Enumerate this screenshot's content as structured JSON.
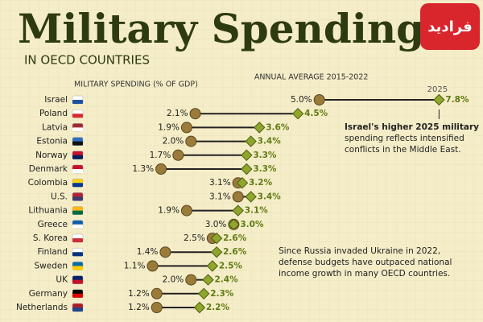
{
  "chart_data": {
    "type": "dumbbell",
    "title": "Military Spending",
    "subtitle": "IN OECD COUNTRIES",
    "axis_label": "MILITARY SPENDING (% OF GDP)",
    "watermark": "فرادید",
    "categories": [
      "Israel",
      "Poland",
      "Latvia",
      "Estonia",
      "Norway",
      "Denmark",
      "Colombia",
      "U.S.",
      "Lithuania",
      "Greece",
      "S. Korea",
      "Finland",
      "Sweden",
      "UK",
      "Germany",
      "Netherlands"
    ],
    "series": [
      {
        "name": "ANNUAL AVERAGE 2015-2022",
        "color": "#9a7b3a",
        "values": [
          5.0,
          2.1,
          1.9,
          2.0,
          1.7,
          1.3,
          3.1,
          3.1,
          1.9,
          3.0,
          2.5,
          1.4,
          1.1,
          2.0,
          1.2,
          1.2
        ],
        "value_labels": [
          "5.0%",
          "2.1%",
          "1.9%",
          "2.0%",
          "1.7%",
          "1.3%",
          "3.1%",
          "3.1%",
          "1.9%",
          "3.0%",
          "2.5%",
          "1.4%",
          "1.1%",
          "2.0%",
          "1.2%",
          "1.2%"
        ]
      },
      {
        "name": "2025",
        "color": "#8ea62b",
        "values": [
          7.8,
          4.5,
          3.6,
          3.4,
          3.3,
          3.3,
          3.2,
          3.4,
          3.1,
          3.0,
          2.6,
          2.6,
          2.5,
          2.4,
          2.3,
          2.2
        ],
        "value_labels": [
          "7.8%",
          "4.5%",
          "3.6%",
          "3.4%",
          "3.3%",
          "3.3%",
          "3.2%",
          "3.4%",
          "3.1%",
          "3.0%",
          "2.6%",
          "2.6%",
          "2.5%",
          "2.4%",
          "2.3%",
          "2.2%"
        ]
      }
    ],
    "xlim": [
      0,
      8
    ],
    "annotations": [
      [
        "Israel's higher 2025 military",
        "spending reflects intensified",
        "conflicts in the Middle East."
      ],
      [
        "Since Russia invaded Ukraine in 2022,",
        "defense budgets have outpaced national",
        "income growth in many OECD countries."
      ]
    ]
  }
}
